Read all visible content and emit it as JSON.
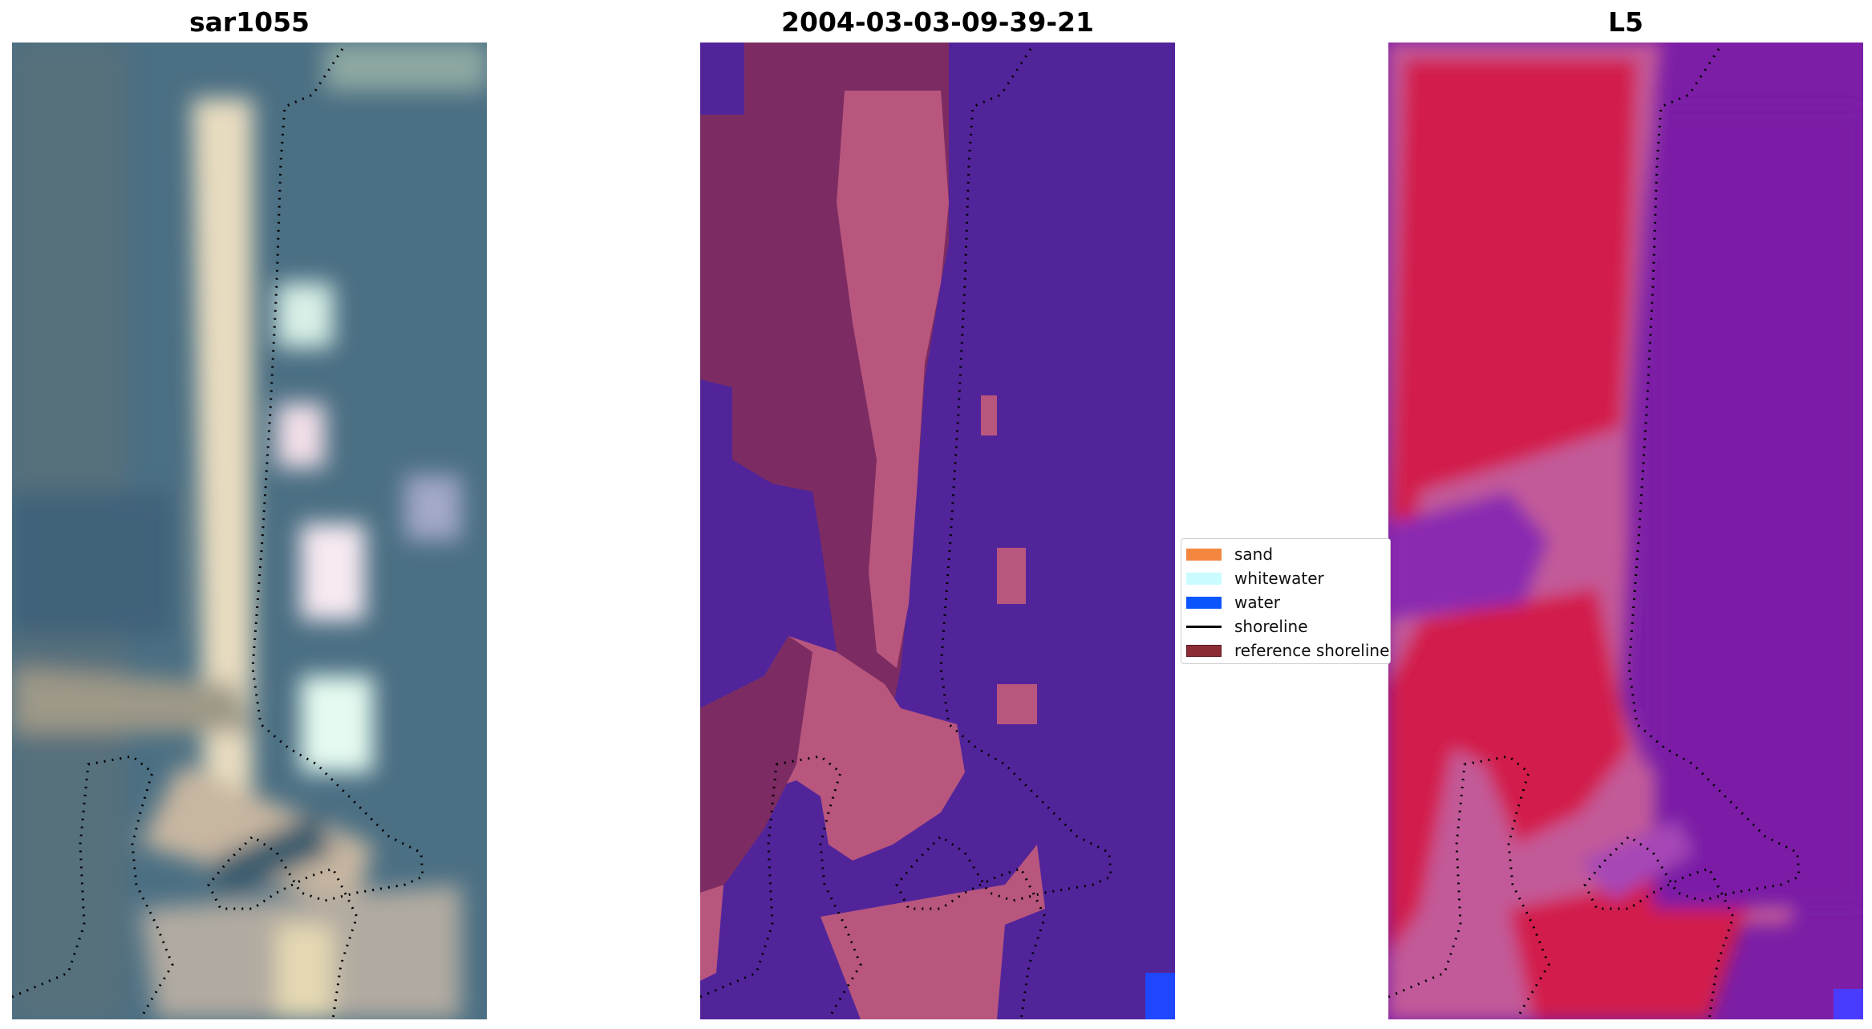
{
  "figure": {
    "panels": [
      {
        "title": "sar1055"
      },
      {
        "title": "2004-03-03-09-39-21"
      },
      {
        "title": "L5"
      }
    ]
  },
  "legend": {
    "items": [
      {
        "label": "sand",
        "color": "#f4873f",
        "kind": "patch"
      },
      {
        "label": "whitewater",
        "color": "#c9fbff",
        "kind": "patch"
      },
      {
        "label": "water",
        "color": "#0b55ff",
        "kind": "patch"
      },
      {
        "label": "shoreline",
        "color": "#000000",
        "kind": "line"
      },
      {
        "label": "reference shoreline",
        "color": "#8b2c34",
        "kind": "patch"
      }
    ]
  },
  "colors": {
    "rgb_water": "#4a6f85",
    "rgb_sand": "#d8c9a8",
    "class_water": "#52249a",
    "class_sand": "#7c2c62",
    "class_sand_light": "#b8567e",
    "class_water_blue": "#1f47ff",
    "index_land": "#d21d4c",
    "index_water": "#7c1fa6",
    "index_edge": "#c25a99"
  }
}
